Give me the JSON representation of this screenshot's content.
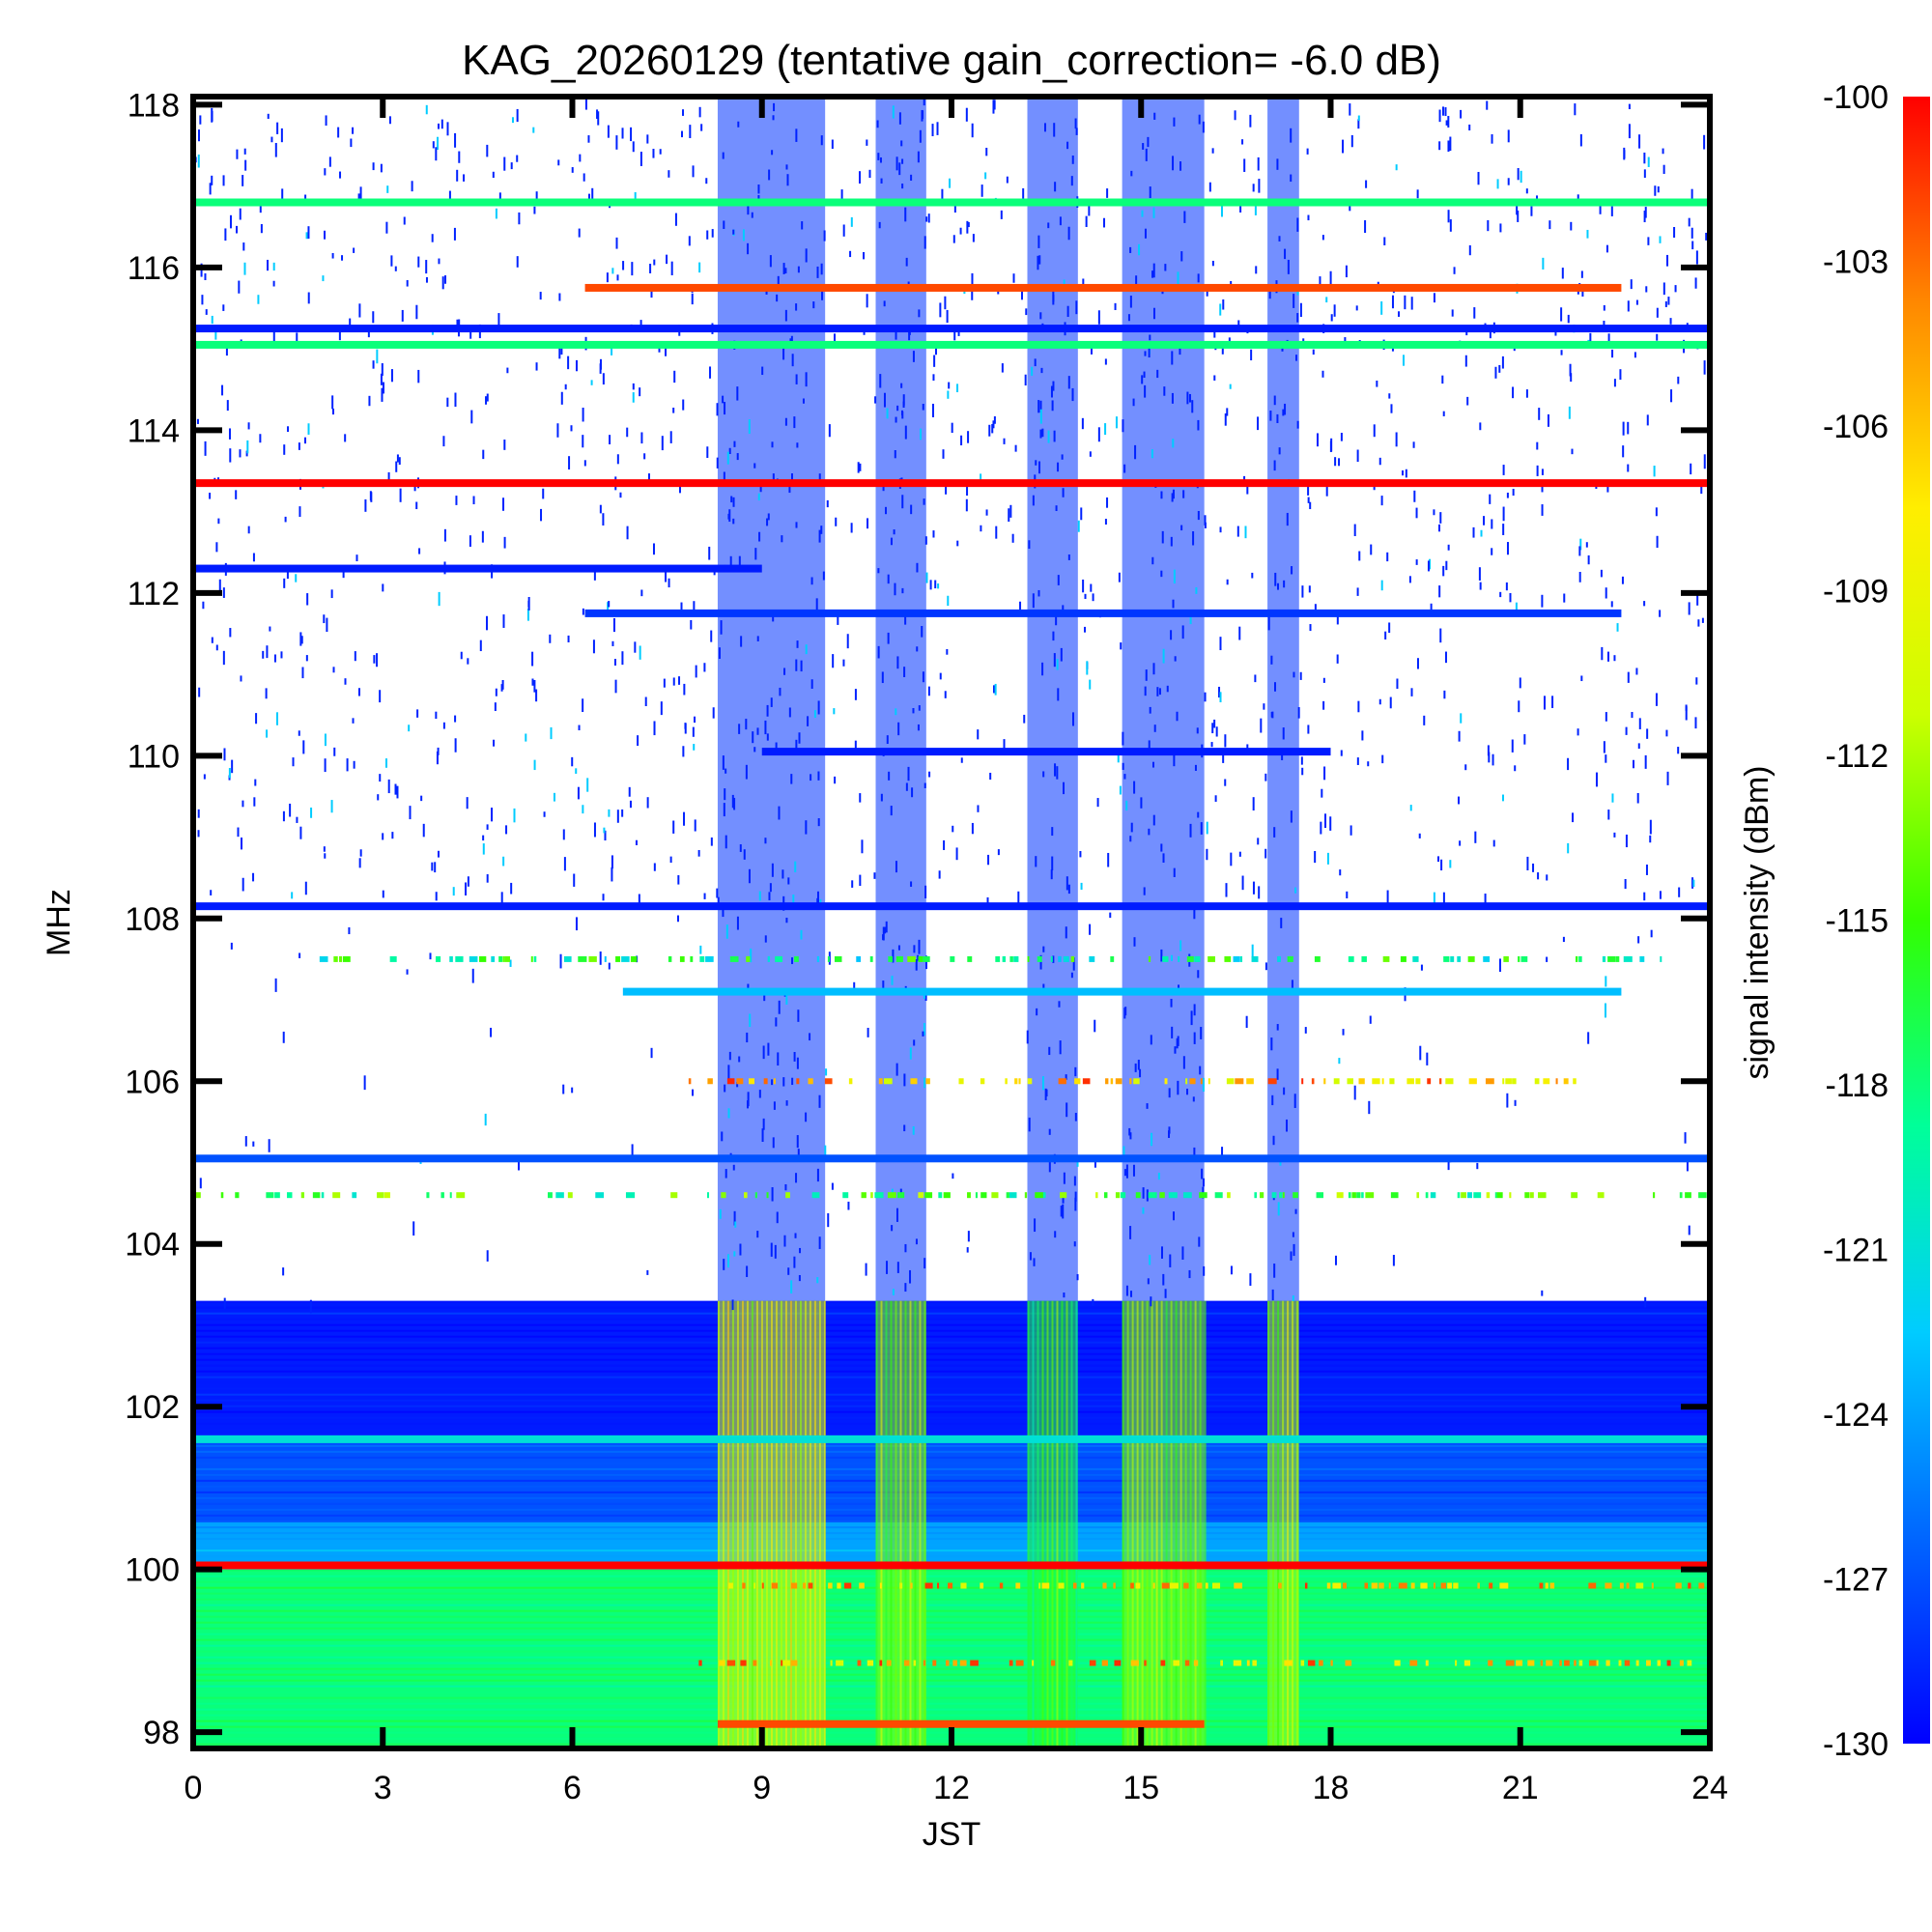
{
  "chart_data": {
    "type": "heatmap",
    "title": "KAG_20260129 (tentative gain_correction= -6.0 dB)",
    "xlabel": "JST",
    "ylabel": "MHz",
    "colorbar_label": "signal intensity (dBm)",
    "xlim": [
      0,
      24
    ],
    "ylim": [
      97.8,
      118.1
    ],
    "x_ticks": [
      0,
      3,
      6,
      9,
      12,
      15,
      18,
      21,
      24
    ],
    "x_tick_labels": [
      "0",
      "3",
      "6",
      "9",
      "12",
      "15",
      "18",
      "21",
      "24"
    ],
    "y_ticks": [
      98,
      100,
      102,
      104,
      106,
      108,
      110,
      112,
      114,
      116,
      118
    ],
    "y_tick_labels": [
      "98",
      "100",
      "102",
      "104",
      "106",
      "108",
      "110",
      "112",
      "114",
      "116",
      "118"
    ],
    "colorbar_range": [
      -130,
      -100
    ],
    "colorbar_ticks": [
      -100,
      -103,
      -106,
      -109,
      -112,
      -115,
      -118,
      -121,
      -124,
      -127,
      -130
    ],
    "colorbar_tick_labels": [
      "-100",
      "-103",
      "-106",
      "-109",
      "-112",
      "-115",
      "-118",
      "-121",
      "-124",
      "-127",
      "-130"
    ],
    "colormap": [
      "#0000ff",
      "#0066ff",
      "#00ccff",
      "#00ff99",
      "#33ff00",
      "#ccff00",
      "#ffee00",
      "#ff8800",
      "#ff0000"
    ],
    "grid": false,
    "continuous_bands": [
      {
        "freq_mhz": 116.8,
        "jst_start": 0,
        "jst_end": 24,
        "dbm": -118
      },
      {
        "freq_mhz": 115.75,
        "jst_start": 6.2,
        "jst_end": 22.6,
        "dbm": -102
      },
      {
        "freq_mhz": 115.25,
        "jst_start": 0,
        "jst_end": 24,
        "dbm": -129
      },
      {
        "freq_mhz": 115.05,
        "jst_start": 0,
        "jst_end": 24,
        "dbm": -118
      },
      {
        "freq_mhz": 113.35,
        "jst_start": 0,
        "jst_end": 24,
        "dbm": -100
      },
      {
        "freq_mhz": 112.3,
        "jst_start": 0,
        "jst_end": 9,
        "dbm": -129
      },
      {
        "freq_mhz": 111.75,
        "jst_start": 6.2,
        "jst_end": 22.6,
        "dbm": -128
      },
      {
        "freq_mhz": 110.05,
        "jst_start": 9,
        "jst_end": 18,
        "dbm": -129
      },
      {
        "freq_mhz": 108.15,
        "jst_start": 0,
        "jst_end": 24,
        "dbm": -129
      },
      {
        "freq_mhz": 107.1,
        "jst_start": 6.8,
        "jst_end": 22.6,
        "dbm": -123
      },
      {
        "freq_mhz": 105.05,
        "jst_start": 0,
        "jst_end": 24,
        "dbm": -127
      },
      {
        "freq_mhz": 101.6,
        "jst_start": 0,
        "jst_end": 24,
        "dbm": -121
      },
      {
        "freq_mhz": 100.05,
        "jst_start": 0,
        "jst_end": 24,
        "dbm": -100
      },
      {
        "freq_mhz": 98.1,
        "jst_start": 8.3,
        "jst_end": 16,
        "dbm": -102
      }
    ],
    "intermittent_bands": [
      {
        "freq_mhz": 107.5,
        "jst_start": 2,
        "jst_end": 23.5,
        "dbm": -118
      },
      {
        "freq_mhz": 106.0,
        "jst_start": 7.6,
        "jst_end": 22.5,
        "dbm": -106
      },
      {
        "freq_mhz": 104.6,
        "jst_start": 0,
        "jst_end": 24,
        "dbm": -116
      },
      {
        "freq_mhz": 99.8,
        "jst_start": 8.3,
        "jst_end": 24,
        "dbm": -106
      },
      {
        "freq_mhz": 98.85,
        "jst_start": 8,
        "jst_end": 24,
        "dbm": -106
      }
    ],
    "background_regions": [
      {
        "freq_start": 97.8,
        "freq_end": 100.0,
        "dbm": -118
      },
      {
        "freq_start": 100.0,
        "freq_end": 100.6,
        "dbm": -124
      },
      {
        "freq_start": 100.6,
        "freq_end": 101.6,
        "dbm": -127
      },
      {
        "freq_start": 101.6,
        "freq_end": 103.3,
        "dbm": -129
      }
    ],
    "active_periods": [
      {
        "jst_start": 8.3,
        "jst_end": 10.0,
        "freq_low": 97.8,
        "freq_high": 118.1,
        "dbm": -110
      },
      {
        "jst_start": 10.8,
        "jst_end": 11.6,
        "freq_low": 97.8,
        "freq_high": 118.1,
        "dbm": -113
      },
      {
        "jst_start": 13.2,
        "jst_end": 14.0,
        "freq_low": 97.8,
        "freq_high": 118.1,
        "dbm": -116
      },
      {
        "jst_start": 14.7,
        "jst_end": 16.0,
        "freq_low": 97.8,
        "freq_high": 118.1,
        "dbm": -113
      },
      {
        "jst_start": 17.0,
        "jst_end": 17.5,
        "freq_low": 97.8,
        "freq_high": 118.1,
        "dbm": -112
      }
    ]
  }
}
